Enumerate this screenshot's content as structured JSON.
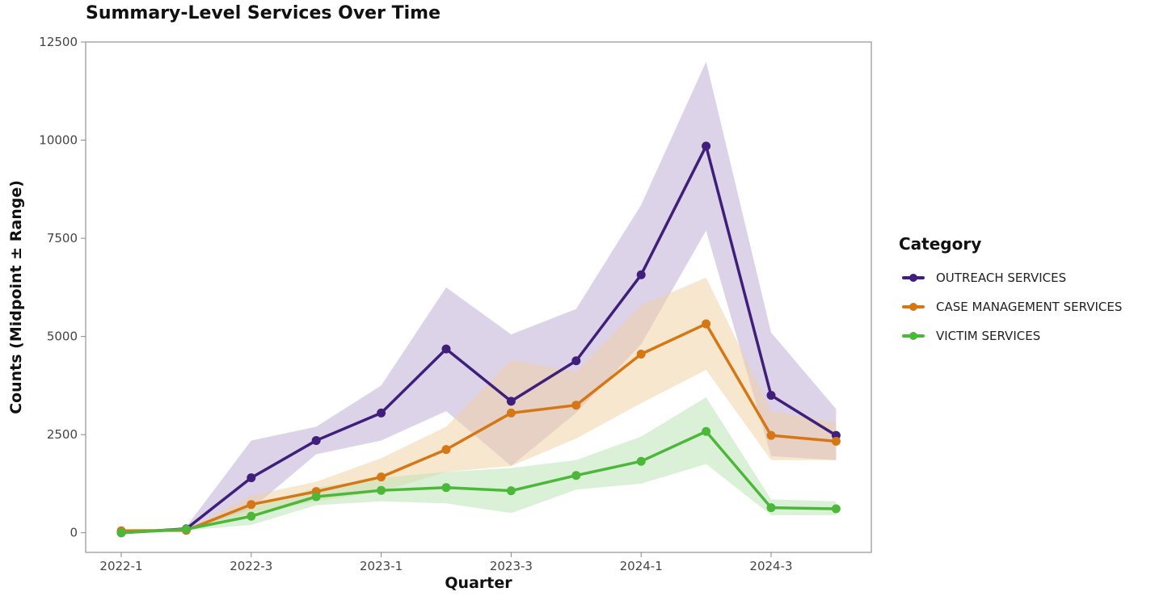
{
  "chart_data": {
    "type": "line",
    "title": "Summary-Level Services Over Time",
    "xlabel": "Quarter",
    "ylabel": "Counts (Midpoint ± Range)",
    "ylim": [
      -500,
      12500
    ],
    "yticks": [
      0,
      2500,
      5000,
      7500,
      10000,
      12500
    ],
    "x": [
      "2022-1",
      "2022-2",
      "2022-3",
      "2022-4",
      "2023-1",
      "2023-2",
      "2023-3",
      "2023-4",
      "2024-1",
      "2024-2",
      "2024-3",
      "2024-4"
    ],
    "xtick_labels": [
      "2022-1",
      "2022-3",
      "2023-1",
      "2023-3",
      "2024-1",
      "2024-3"
    ],
    "grid": false,
    "legend_title": "Category",
    "legend_position": "right",
    "series": [
      {
        "name": "OUTREACH SERVICES",
        "color": "#3f1f7a",
        "band_color": "#b9a7d3",
        "values": [
          0,
          100,
          1400,
          2350,
          3050,
          4680,
          3350,
          4380,
          6570,
          9850,
          3500,
          2480
        ],
        "lower": [
          0,
          50,
          600,
          2000,
          2350,
          3100,
          1700,
          3050,
          4800,
          7700,
          1950,
          1850
        ],
        "upper": [
          0,
          150,
          2350,
          2700,
          3750,
          6250,
          5050,
          5700,
          8350,
          12000,
          5100,
          3150
        ]
      },
      {
        "name": "CASE MANAGEMENT SERVICES",
        "color": "#d47714",
        "band_color": "#f2cfa0",
        "values": [
          50,
          60,
          720,
          1050,
          1420,
          2120,
          3050,
          3250,
          4550,
          5320,
          2480,
          2330
        ],
        "lower": [
          30,
          40,
          500,
          800,
          1050,
          1550,
          1700,
          2400,
          3300,
          4150,
          1850,
          1850
        ],
        "upper": [
          70,
          80,
          950,
          1300,
          1900,
          2700,
          4400,
          4100,
          5800,
          6500,
          3100,
          2800
        ]
      },
      {
        "name": "VICTIM SERVICES",
        "color": "#4cb83a",
        "band_color": "#b8e3b0",
        "values": [
          0,
          90,
          420,
          920,
          1080,
          1150,
          1070,
          1460,
          1820,
          2580,
          640,
          610
        ],
        "lower": [
          0,
          60,
          200,
          700,
          800,
          750,
          500,
          1100,
          1250,
          1750,
          450,
          450
        ],
        "upper": [
          0,
          120,
          650,
          1150,
          1400,
          1550,
          1650,
          1850,
          2450,
          3450,
          850,
          800
        ]
      }
    ]
  }
}
